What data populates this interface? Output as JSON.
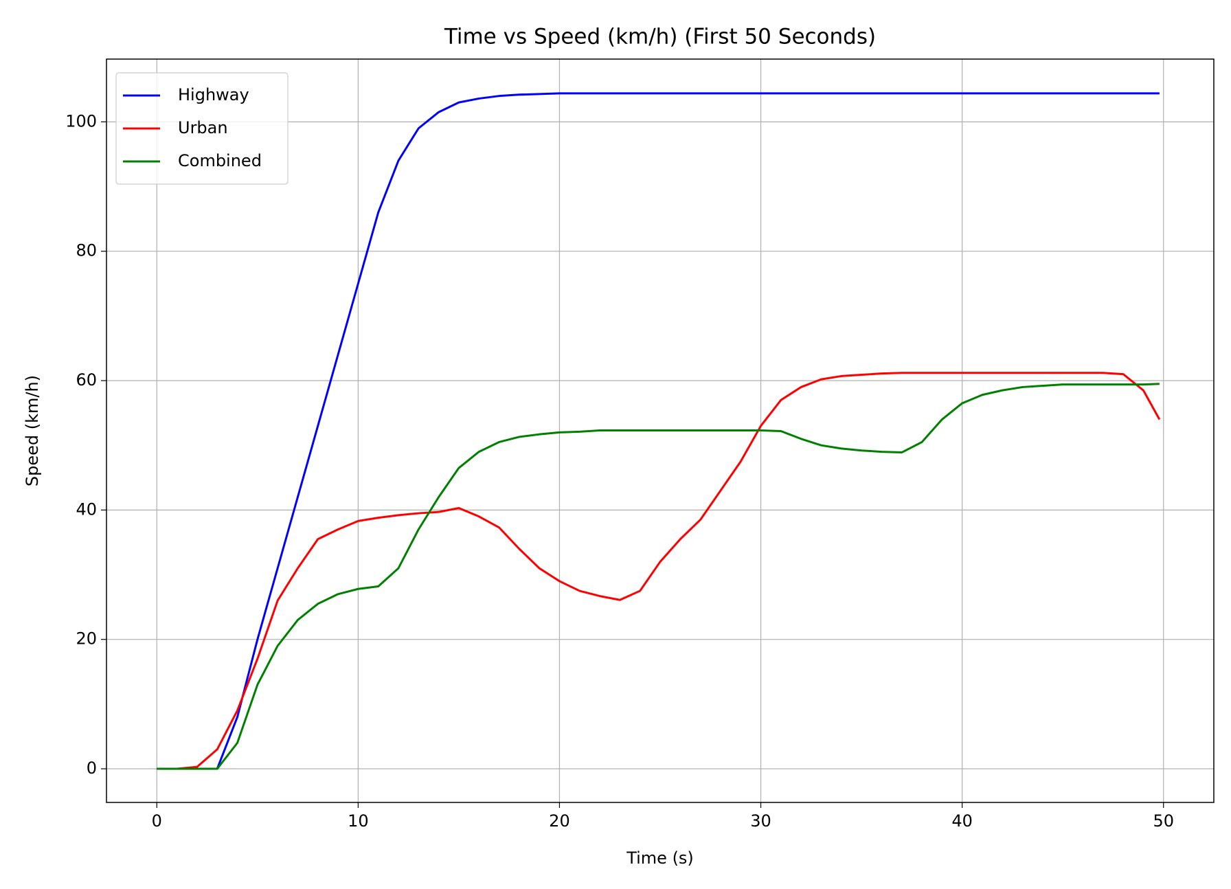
{
  "chart_data": {
    "type": "line",
    "title": "Time vs Speed (km/h) (First 50 Seconds)",
    "x_label": "Time (s)",
    "y_label": "Speed (km/h)",
    "x": [
      0,
      1,
      2,
      3,
      4,
      5,
      6,
      7,
      8,
      9,
      10,
      11,
      12,
      13,
      14,
      15,
      16,
      17,
      18,
      19,
      20,
      21,
      22,
      23,
      24,
      25,
      26,
      27,
      28,
      29,
      30,
      31,
      32,
      33,
      34,
      35,
      36,
      37,
      38,
      39,
      40,
      41,
      42,
      43,
      44,
      45,
      46,
      47,
      48,
      49,
      49.8
    ],
    "series": [
      {
        "name": "Highway",
        "color": "#0000ff",
        "values": [
          0,
          0,
          0,
          0,
          8,
          20,
          31,
          42,
          53,
          64,
          75,
          86,
          94,
          99,
          101.5,
          103,
          103.6,
          104,
          104.2,
          104.3,
          104.4,
          104.4,
          104.4,
          104.4,
          104.4,
          104.4,
          104.4,
          104.4,
          104.4,
          104.4,
          104.4,
          104.4,
          104.4,
          104.4,
          104.4,
          104.4,
          104.4,
          104.4,
          104.4,
          104.4,
          104.4,
          104.4,
          104.4,
          104.4,
          104.4,
          104.4,
          104.4,
          104.4,
          104.4,
          104.4,
          104.4
        ]
      },
      {
        "name": "Urban",
        "color": "#ff0000",
        "values": [
          0,
          0,
          0.3,
          3,
          9,
          17,
          26,
          31,
          35.5,
          37,
          38.3,
          38.8,
          39.2,
          39.5,
          39.7,
          40.3,
          39,
          37.3,
          34,
          31,
          29,
          27.5,
          26.7,
          26.1,
          27.5,
          32,
          35.5,
          38.5,
          43,
          47.5,
          53,
          57,
          59,
          60.2,
          60.7,
          60.9,
          61.1,
          61.2,
          61.2,
          61.2,
          61.2,
          61.2,
          61.2,
          61.2,
          61.2,
          61.2,
          61.2,
          61.2,
          61,
          58.5,
          54
        ]
      },
      {
        "name": "Combined",
        "color": "#008000",
        "values": [
          0,
          0,
          0,
          0,
          4,
          13,
          19,
          23,
          25.5,
          27,
          27.8,
          28.2,
          31,
          37,
          42,
          46.5,
          49,
          50.5,
          51.3,
          51.7,
          52,
          52.1,
          52.3,
          52.3,
          52.3,
          52.3,
          52.3,
          52.3,
          52.3,
          52.3,
          52.3,
          52.2,
          51,
          50,
          49.5,
          49.2,
          49,
          48.9,
          50.5,
          54,
          56.5,
          57.8,
          58.5,
          59,
          59.2,
          59.4,
          59.4,
          59.4,
          59.4,
          59.4,
          59.5
        ]
      }
    ],
    "xlim": [
      -2.5,
      52.5
    ],
    "ylim": [
      -5.2,
      109.7
    ],
    "xticks": [
      0,
      10,
      20,
      30,
      40,
      50
    ],
    "yticks": [
      0,
      20,
      40,
      60,
      80,
      100
    ],
    "grid": true,
    "legend": "upper left"
  }
}
